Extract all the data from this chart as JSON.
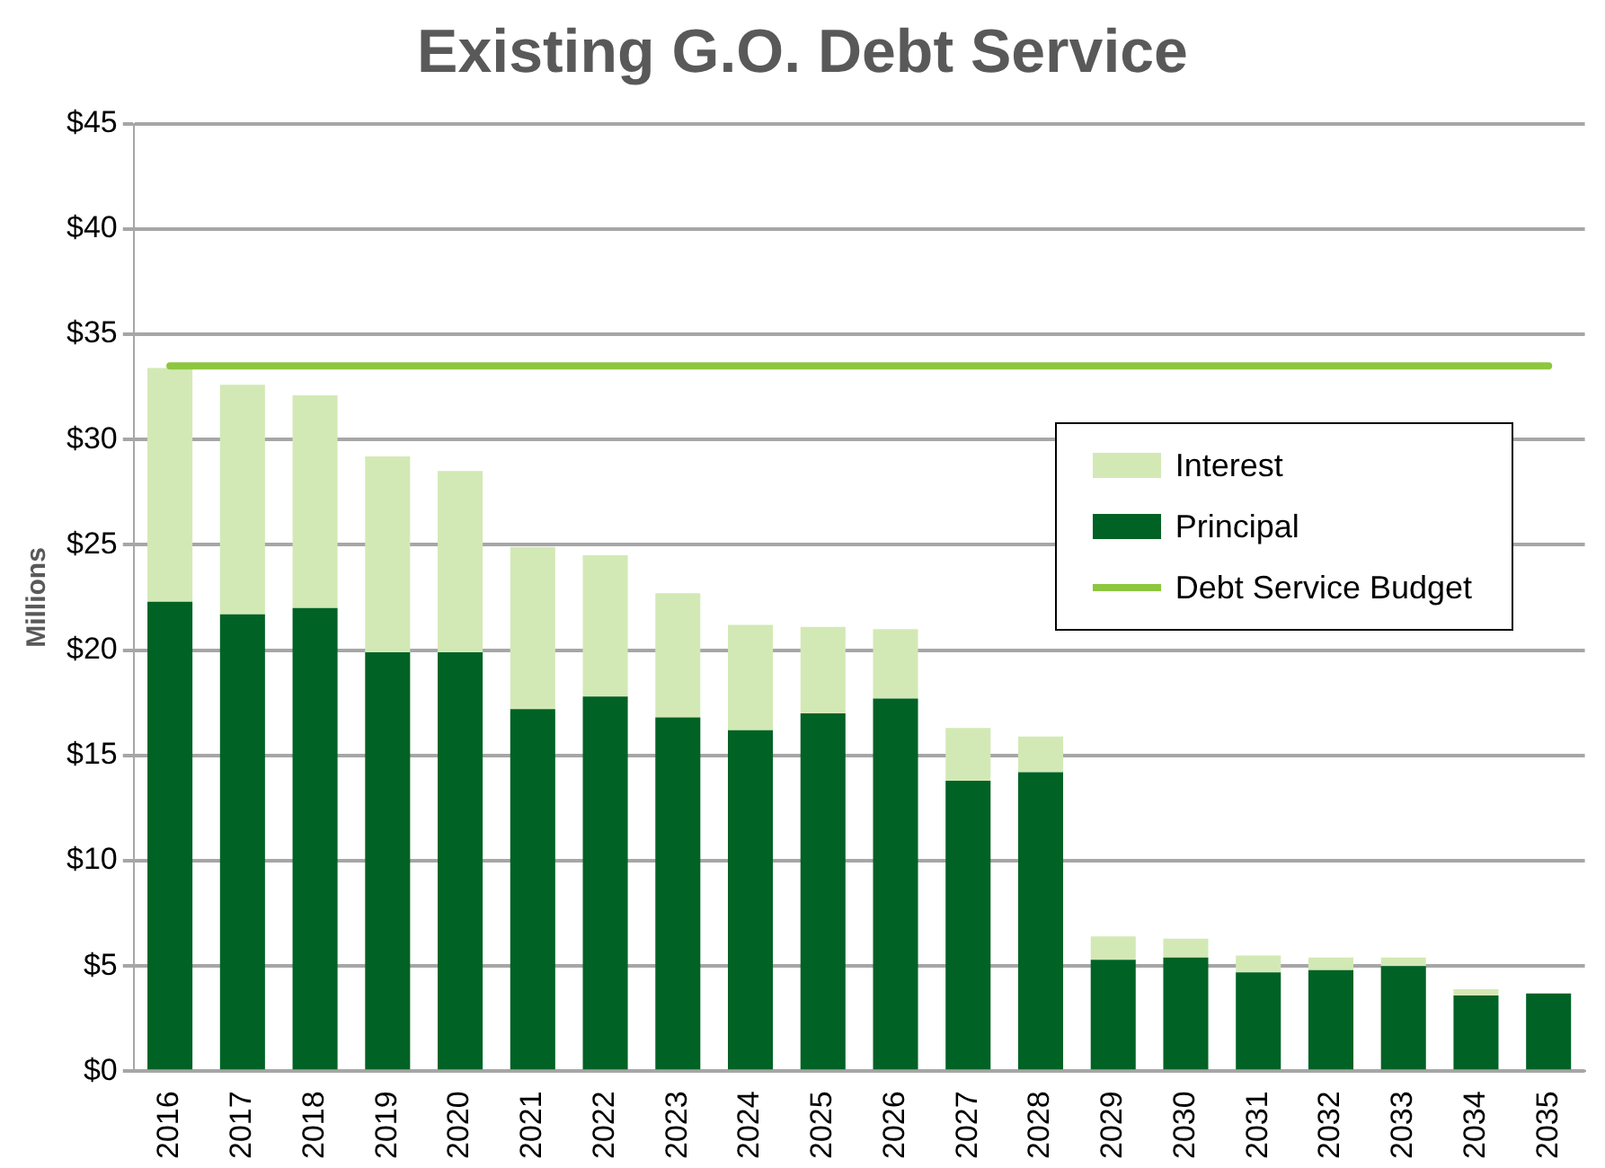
{
  "chart_data": {
    "type": "bar",
    "title": "Existing G.O. Debt Service",
    "ylabel": "Millions",
    "categories": [
      "2016",
      "2017",
      "2018",
      "2019",
      "2020",
      "2021",
      "2022",
      "2023",
      "2024",
      "2025",
      "2026",
      "2027",
      "2028",
      "2029",
      "2030",
      "2031",
      "2032",
      "2033",
      "2034",
      "2035"
    ],
    "stacked": true,
    "series": [
      {
        "name": "Principal",
        "color": "#006225",
        "values": [
          22.3,
          21.7,
          22.0,
          19.9,
          19.9,
          17.2,
          17.8,
          16.8,
          16.2,
          17.0,
          17.7,
          13.8,
          14.2,
          5.3,
          5.4,
          4.7,
          4.8,
          5.0,
          3.6,
          3.7
        ]
      },
      {
        "name": "Interest",
        "color": "#d3e9b5",
        "values": [
          11.1,
          10.9,
          10.1,
          9.3,
          8.6,
          7.7,
          6.7,
          5.9,
          5.0,
          4.1,
          3.3,
          2.5,
          1.7,
          1.1,
          0.9,
          0.8,
          0.6,
          0.4,
          0.3,
          null
        ]
      },
      {
        "name": "Debt Service Budget",
        "type": "line",
        "color": "#8dc63f",
        "values": [
          33.5,
          33.5,
          33.5,
          33.5,
          33.5,
          33.5,
          33.5,
          33.5,
          33.5,
          33.5,
          33.5,
          33.5,
          33.5,
          33.5,
          33.5,
          33.5,
          33.5,
          33.5,
          33.5,
          33.5
        ]
      }
    ],
    "ylim": [
      0,
      45
    ],
    "yticks": [
      {
        "value": 0,
        "label": "$0"
      },
      {
        "value": 5,
        "label": "$5"
      },
      {
        "value": 10,
        "label": "$10"
      },
      {
        "value": 15,
        "label": "$15"
      },
      {
        "value": 20,
        "label": "$20"
      },
      {
        "value": 25,
        "label": "$25"
      },
      {
        "value": 30,
        "label": "$30"
      },
      {
        "value": 35,
        "label": "$35"
      },
      {
        "value": 40,
        "label": "$40"
      },
      {
        "value": 45,
        "label": "$45"
      }
    ],
    "grid": "y",
    "legend": "top right",
    "marker": "none"
  }
}
